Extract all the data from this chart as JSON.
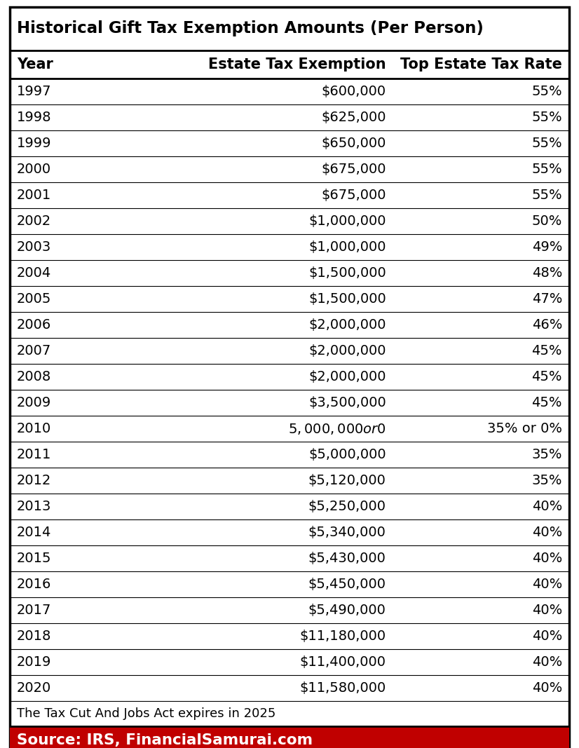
{
  "title": "Historical Gift Tax Exemption Amounts (Per Person)",
  "col_headers": [
    "Year",
    "Estate Tax Exemption",
    "Top Estate Tax Rate"
  ],
  "rows": [
    [
      "1997",
      "$600,000",
      "55%"
    ],
    [
      "1998",
      "$625,000",
      "55%"
    ],
    [
      "1999",
      "$650,000",
      "55%"
    ],
    [
      "2000",
      "$675,000",
      "55%"
    ],
    [
      "2001",
      "$675,000",
      "55%"
    ],
    [
      "2002",
      "$1,000,000",
      "50%"
    ],
    [
      "2003",
      "$1,000,000",
      "49%"
    ],
    [
      "2004",
      "$1,500,000",
      "48%"
    ],
    [
      "2005",
      "$1,500,000",
      "47%"
    ],
    [
      "2006",
      "$2,000,000",
      "46%"
    ],
    [
      "2007",
      "$2,000,000",
      "45%"
    ],
    [
      "2008",
      "$2,000,000",
      "45%"
    ],
    [
      "2009",
      "$3,500,000",
      "45%"
    ],
    [
      "2010",
      "$5,000,000 or $0",
      "35% or 0%"
    ],
    [
      "2011",
      "$5,000,000",
      "35%"
    ],
    [
      "2012",
      "$5,120,000",
      "35%"
    ],
    [
      "2013",
      "$5,250,000",
      "40%"
    ],
    [
      "2014",
      "$5,340,000",
      "40%"
    ],
    [
      "2015",
      "$5,430,000",
      "40%"
    ],
    [
      "2016",
      "$5,450,000",
      "40%"
    ],
    [
      "2017",
      "$5,490,000",
      "40%"
    ],
    [
      "2018",
      "$11,180,000",
      "40%"
    ],
    [
      "2019",
      "$11,400,000",
      "40%"
    ],
    [
      "2020",
      "$11,580,000",
      "40%"
    ]
  ],
  "footnote": "The Tax Cut And Jobs Act expires in 2025",
  "source": "Source: IRS, FinancialSamurai.com",
  "border_color": "#000000",
  "source_bg": "#c00000",
  "source_text_color": "#ffffff",
  "title_color": "#000000",
  "header_text_color": "#000000",
  "row_text_color": "#000000",
  "footnote_color": "#000000",
  "fig_width": 8.26,
  "fig_height": 10.67,
  "dpi": 100
}
